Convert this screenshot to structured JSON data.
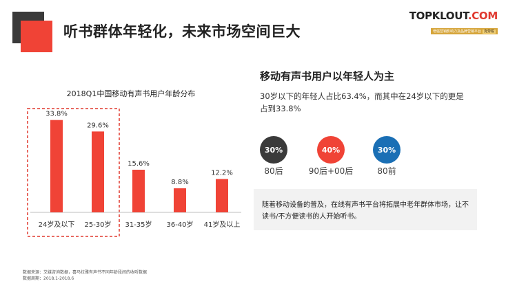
{
  "header": {
    "title": "听书群体年轻化，未来市场空间巨大"
  },
  "logo": {
    "brand_main": "TOPKLOUT",
    "brand_accent": ".COM",
    "tagline": "增强营销影响力及品牌营销平台",
    "tagline_cn": "克劳锐"
  },
  "chart_data": {
    "type": "bar",
    "title": "2018Q1中国移动有声书用户年龄分布",
    "categories": [
      "24岁及以下",
      "25-30岁",
      "31-35岁",
      "36-40岁",
      "41岁及以上"
    ],
    "values": [
      33.8,
      29.6,
      15.6,
      8.8,
      12.2
    ],
    "value_labels": [
      "33.8%",
      "29.6%",
      "15.6%",
      "8.8%",
      "12.2%"
    ],
    "unit": "%",
    "ylim": [
      0,
      40
    ],
    "grid": false,
    "bar_color": "#f04336",
    "highlight": {
      "categories": [
        "24岁及以下",
        "25-30岁"
      ],
      "style": "dashed",
      "color": "#e0392f"
    }
  },
  "right_panel": {
    "heading": "移动有声书用户以年轻人为主",
    "description": "30岁以下的年轻人占比63.4%，而其中在24岁以下的更是占到33.8%",
    "circles": [
      {
        "value": "30%",
        "label": "80后",
        "color": "#3a3a3a"
      },
      {
        "value": "40%",
        "label": "90后+00后",
        "color": "#f04336"
      },
      {
        "value": "30%",
        "label": "80前",
        "color": "#1a6fb5"
      }
    ],
    "note": "随着移动设备的普及，在线有声书平台将拓展中老年群体市场，让不读书/不方便读书的人开始听书。"
  },
  "footer": {
    "source_line": "数据来源：艾媒咨询数据，喜马拉雅有声书不同年龄段间的收听数据",
    "period_line": "数据周期：2018.1-2018.6"
  }
}
